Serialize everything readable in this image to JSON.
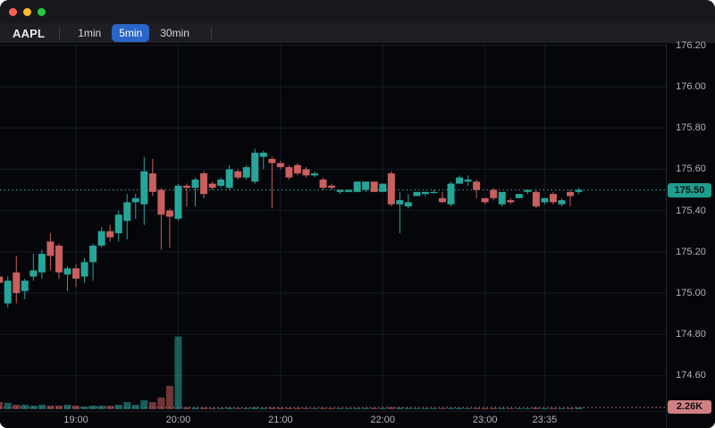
{
  "window": {
    "controls": [
      "close",
      "minimize",
      "zoom"
    ]
  },
  "toolbar": {
    "symbol": "AAPL",
    "timeframes": [
      {
        "label": "1min",
        "active": false
      },
      {
        "label": "5min",
        "active": true
      },
      {
        "label": "30min",
        "active": false
      }
    ]
  },
  "chart_data": {
    "type": "candlestick",
    "symbol": "AAPL",
    "interval": "5min",
    "current_price": "175.50",
    "current_volume": "2.26K",
    "y_ticks": [
      "176.20",
      "176.00",
      "175.80",
      "175.60",
      "175.40",
      "175.20",
      "175.00",
      "174.80",
      "174.60"
    ],
    "x_ticks": [
      "19:00",
      "20:00",
      "21:00",
      "22:00",
      "23:00",
      "23:35"
    ],
    "ylim": [
      174.45,
      176.28
    ],
    "grid": true,
    "colors": {
      "up": "#26a69a",
      "down": "#c95f5f",
      "price_line": "#2aa79a",
      "volume_line": "#c98080",
      "grid": "#161a29"
    },
    "columns": [
      "time",
      "open",
      "high",
      "low",
      "close",
      "volume_k"
    ],
    "candles": [
      [
        "18:15",
        175.08,
        175.1,
        175.03,
        175.05,
        9.0
      ],
      [
        "18:20",
        174.95,
        175.08,
        174.93,
        175.06,
        8.0
      ],
      [
        "18:25",
        175.1,
        175.18,
        174.95,
        175.0,
        5.6
      ],
      [
        "18:30",
        175.01,
        175.07,
        174.97,
        175.06,
        5.6
      ],
      [
        "18:35",
        175.08,
        175.19,
        175.06,
        175.11,
        4.5
      ],
      [
        "18:40",
        175.1,
        175.21,
        175.07,
        175.19,
        5.6
      ],
      [
        "18:45",
        175.25,
        175.29,
        175.11,
        175.18,
        4.5
      ],
      [
        "18:50",
        175.23,
        175.24,
        175.07,
        175.1,
        4.5
      ],
      [
        "18:55",
        175.09,
        175.13,
        175.01,
        175.12,
        5.6
      ],
      [
        "19:00",
        175.12,
        175.14,
        175.03,
        175.07,
        4.5
      ],
      [
        "19:05",
        175.08,
        175.17,
        175.05,
        175.15,
        3.4
      ],
      [
        "19:10",
        175.15,
        175.24,
        175.06,
        175.23,
        4.5
      ],
      [
        "19:15",
        175.23,
        175.32,
        175.22,
        175.3,
        4.5
      ],
      [
        "19:20",
        175.3,
        175.33,
        175.25,
        175.27,
        4.5
      ],
      [
        "19:25",
        175.29,
        175.4,
        175.25,
        175.38,
        5.6
      ],
      [
        "19:30",
        175.35,
        175.48,
        175.26,
        175.44,
        9.0
      ],
      [
        "19:35",
        175.44,
        175.48,
        175.36,
        175.46,
        5.6
      ],
      [
        "19:40",
        175.43,
        175.66,
        175.33,
        175.59,
        11.3
      ],
      [
        "19:45",
        175.58,
        175.65,
        175.47,
        175.49,
        9.0
      ],
      [
        "19:50",
        175.5,
        175.51,
        175.21,
        175.38,
        14.7
      ],
      [
        "19:55",
        175.4,
        175.41,
        175.22,
        175.37,
        29.4
      ],
      [
        "20:00",
        175.36,
        175.53,
        175.35,
        175.52,
        91.5
      ],
      [
        "20:05",
        175.52,
        175.53,
        175.42,
        175.51,
        2.5
      ],
      [
        "20:10",
        175.51,
        175.56,
        175.42,
        175.55,
        2.0
      ],
      [
        "20:15",
        175.58,
        175.59,
        175.46,
        175.48,
        2.0
      ],
      [
        "20:20",
        175.53,
        175.54,
        175.5,
        175.51,
        1.5
      ],
      [
        "20:25",
        175.52,
        175.56,
        175.51,
        175.55,
        1.5
      ],
      [
        "20:30",
        175.51,
        175.62,
        175.5,
        175.6,
        2.0
      ],
      [
        "20:35",
        175.59,
        175.6,
        175.55,
        175.56,
        1.5
      ],
      [
        "20:40",
        175.56,
        175.62,
        175.55,
        175.61,
        1.5
      ],
      [
        "20:45",
        175.54,
        175.7,
        175.53,
        175.68,
        2.5
      ],
      [
        "20:50",
        175.66,
        175.69,
        175.6,
        175.68,
        1.5
      ],
      [
        "20:55",
        175.65,
        175.66,
        175.41,
        175.63,
        2.0
      ],
      [
        "21:00",
        175.63,
        175.64,
        175.6,
        175.61,
        1.5
      ],
      [
        "21:05",
        175.61,
        175.62,
        175.55,
        175.56,
        1.5
      ],
      [
        "21:10",
        175.62,
        175.63,
        175.57,
        175.58,
        1.5
      ],
      [
        "21:15",
        175.6,
        175.61,
        175.56,
        175.57,
        1.5
      ],
      [
        "21:20",
        175.57,
        175.59,
        175.56,
        175.58,
        1.2
      ],
      [
        "21:25",
        175.55,
        175.56,
        175.5,
        175.51,
        1.5
      ],
      [
        "21:30",
        175.52,
        175.53,
        175.5,
        175.51,
        1.2
      ],
      [
        "21:35",
        175.49,
        175.5,
        175.48,
        175.5,
        1.2
      ],
      [
        "21:40",
        175.49,
        175.5,
        175.49,
        175.5,
        1.2
      ],
      [
        "21:45",
        175.49,
        175.54,
        175.49,
        175.54,
        1.5
      ],
      [
        "21:50",
        175.5,
        175.54,
        175.49,
        175.54,
        1.5
      ],
      [
        "21:55",
        175.54,
        175.54,
        175.49,
        175.49,
        1.5
      ],
      [
        "22:00",
        175.49,
        175.53,
        175.49,
        175.53,
        1.5
      ],
      [
        "22:05",
        175.58,
        175.59,
        175.42,
        175.43,
        2.5
      ],
      [
        "22:10",
        175.43,
        175.49,
        175.29,
        175.45,
        2.0
      ],
      [
        "22:15",
        175.42,
        175.48,
        175.41,
        175.44,
        1.5
      ],
      [
        "22:20",
        175.47,
        175.49,
        175.47,
        175.49,
        1.2
      ],
      [
        "22:25",
        175.48,
        175.49,
        175.47,
        175.49,
        1.2
      ],
      [
        "22:30",
        175.49,
        175.5,
        175.48,
        175.49,
        1.2
      ],
      [
        "22:35",
        175.46,
        175.49,
        175.44,
        175.44,
        1.2
      ],
      [
        "22:40",
        175.43,
        175.54,
        175.42,
        175.53,
        1.5
      ],
      [
        "22:45",
        175.53,
        175.57,
        175.53,
        175.56,
        1.5
      ],
      [
        "22:50",
        175.54,
        175.57,
        175.52,
        175.55,
        1.2
      ],
      [
        "22:55",
        175.54,
        175.55,
        175.46,
        175.5,
        1.5
      ],
      [
        "23:00",
        175.46,
        175.46,
        175.43,
        175.44,
        1.2
      ],
      [
        "23:05",
        175.5,
        175.51,
        175.45,
        175.46,
        1.5
      ],
      [
        "23:10",
        175.43,
        175.49,
        175.42,
        175.49,
        1.5
      ],
      [
        "23:15",
        175.45,
        175.46,
        175.43,
        175.44,
        1.2
      ],
      [
        "23:20",
        175.46,
        175.48,
        175.46,
        175.48,
        1.2
      ],
      [
        "23:25",
        175.49,
        175.5,
        175.48,
        175.5,
        1.2
      ],
      [
        "23:30",
        175.49,
        175.5,
        175.41,
        175.42,
        2.0
      ],
      [
        "23:35",
        175.44,
        175.46,
        175.43,
        175.46,
        1.2
      ],
      [
        "23:40",
        175.48,
        175.49,
        175.43,
        175.44,
        1.5
      ],
      [
        "23:45",
        175.43,
        175.46,
        175.42,
        175.45,
        1.2
      ],
      [
        "23:50",
        175.49,
        175.5,
        175.42,
        175.47,
        1.5
      ],
      [
        "23:55",
        175.49,
        175.51,
        175.48,
        175.5,
        2.26
      ]
    ]
  }
}
